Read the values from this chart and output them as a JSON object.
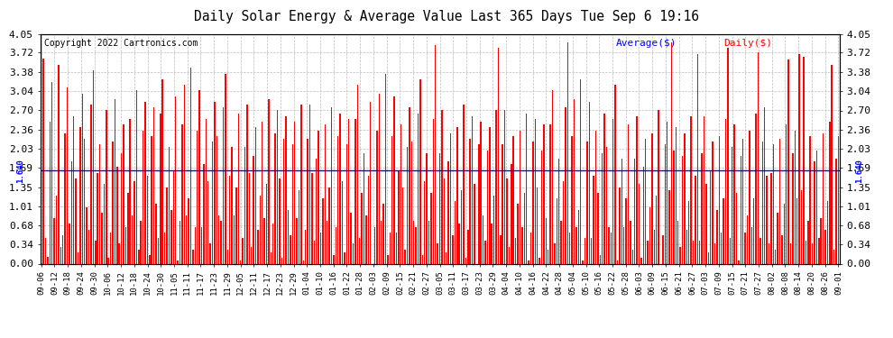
{
  "title": "Daily Solar Energy & Average Value Last 365 Days Tue Sep 6 19:16",
  "copyright": "Copyright 2022 Cartronics.com",
  "average_value": 1.64,
  "average_label": "1.640",
  "ylim": [
    0.0,
    4.05
  ],
  "yticks": [
    0.0,
    0.34,
    0.68,
    1.01,
    1.35,
    1.69,
    2.03,
    2.36,
    2.7,
    3.04,
    3.38,
    3.72,
    4.05
  ],
  "bar_color": "#ff0000",
  "avg_line_color": "#0000ff",
  "background_color": "#ffffff",
  "grid_color": "#bbbbbb",
  "legend_avg_color": "#0000ff",
  "legend_daily_color": "#ff0000",
  "x_tick_labels": [
    "09-06",
    "09-12",
    "09-18",
    "09-24",
    "09-30",
    "10-06",
    "10-12",
    "10-18",
    "10-24",
    "10-30",
    "11-05",
    "11-11",
    "11-17",
    "11-23",
    "11-29",
    "12-05",
    "12-11",
    "12-17",
    "12-23",
    "12-29",
    "01-04",
    "01-10",
    "01-16",
    "01-22",
    "01-28",
    "02-03",
    "02-09",
    "02-15",
    "02-21",
    "02-27",
    "03-05",
    "03-11",
    "03-17",
    "03-23",
    "03-29",
    "04-04",
    "04-10",
    "04-16",
    "04-22",
    "04-28",
    "05-04",
    "05-10",
    "05-16",
    "05-22",
    "05-28",
    "06-03",
    "06-09",
    "06-15",
    "06-21",
    "06-27",
    "07-03",
    "07-09",
    "07-15",
    "07-21",
    "07-27",
    "08-02",
    "08-08",
    "08-14",
    "08-20",
    "08-26",
    "09-01"
  ],
  "daily_values": [
    2.95,
    3.62,
    0.45,
    0.12,
    2.5,
    3.2,
    0.8,
    1.2,
    3.5,
    0.3,
    0.5,
    2.3,
    3.1,
    0.7,
    1.8,
    2.6,
    1.5,
    0.2,
    2.4,
    3.0,
    2.2,
    1.0,
    0.6,
    2.8,
    3.4,
    0.4,
    1.6,
    2.1,
    0.9,
    1.4,
    2.7,
    0.1,
    0.55,
    2.15,
    2.9,
    1.7,
    0.35,
    1.95,
    2.45,
    0.65,
    1.25,
    2.55,
    0.85,
    1.45,
    3.05,
    0.25,
    0.75,
    2.35,
    2.85,
    1.55,
    0.15,
    2.25,
    2.75,
    1.05,
    0.45,
    2.65,
    3.25,
    0.55,
    1.35,
    2.05,
    0.95,
    1.65,
    2.95,
    0.05,
    0.75,
    2.45,
    3.15,
    0.85,
    1.15,
    3.45,
    0.25,
    0.65,
    2.35,
    3.05,
    0.65,
    1.75,
    2.55,
    1.45,
    0.35,
    2.15,
    2.85,
    2.25,
    0.85,
    0.75,
    2.75,
    3.35,
    0.25,
    1.55,
    2.05,
    0.85,
    1.35,
    2.65,
    0.05,
    0.45,
    2.05,
    2.8,
    1.6,
    0.3,
    1.9,
    2.4,
    0.6,
    1.2,
    2.5,
    0.8,
    1.4,
    2.9,
    0.2,
    0.7,
    2.3,
    2.7,
    1.5,
    0.1,
    2.2,
    2.6,
    0.95,
    0.5,
    2.1,
    2.5,
    0.8,
    1.3,
    2.8,
    0.05,
    0.6,
    2.2,
    2.8,
    1.6,
    0.4,
    1.85,
    2.35,
    0.55,
    1.15,
    2.45,
    0.75,
    1.35,
    2.75,
    0.15,
    0.65,
    2.25,
    2.65,
    1.45,
    0.2,
    2.1,
    2.55,
    0.9,
    0.35,
    2.55,
    3.15,
    0.45,
    1.25,
    1.95,
    0.85,
    1.55,
    2.85,
    0.0,
    0.65,
    2.35,
    3.0,
    0.75,
    1.05,
    3.35,
    0.15,
    0.55,
    2.25,
    2.95,
    0.55,
    1.65,
    2.45,
    1.35,
    0.25,
    2.05,
    2.75,
    2.15,
    0.75,
    0.65,
    2.65,
    3.25,
    0.15,
    1.45,
    1.95,
    0.75,
    1.25,
    2.55,
    3.85,
    0.35,
    1.95,
    2.7,
    1.5,
    0.2,
    1.8,
    2.3,
    0.5,
    1.1,
    2.4,
    0.7,
    1.3,
    2.8,
    0.1,
    0.6,
    2.2,
    2.6,
    1.4,
    0.0,
    2.1,
    2.5,
    0.85,
    0.4,
    2.0,
    2.4,
    0.7,
    1.2,
    2.7,
    3.8,
    0.5,
    2.1,
    2.7,
    1.5,
    0.3,
    1.75,
    2.25,
    0.45,
    1.05,
    2.35,
    0.65,
    1.25,
    2.65,
    0.05,
    0.55,
    2.15,
    2.55,
    1.35,
    0.1,
    2.0,
    2.45,
    0.8,
    0.25,
    2.45,
    3.05,
    0.35,
    1.15,
    1.85,
    0.75,
    1.45,
    2.75,
    3.9,
    0.55,
    2.25,
    2.9,
    0.65,
    0.95,
    3.25,
    0.05,
    0.45,
    2.15,
    2.85,
    0.45,
    1.55,
    2.35,
    1.25,
    0.15,
    1.95,
    2.65,
    2.05,
    0.65,
    0.55,
    2.55,
    3.15,
    0.05,
    1.35,
    1.85,
    0.65,
    1.15,
    2.45,
    0.75,
    0.25,
    1.85,
    2.6,
    1.4,
    0.1,
    1.7,
    2.2,
    0.4,
    1.0,
    2.3,
    0.6,
    1.2,
    2.7,
    0.0,
    0.5,
    2.1,
    2.5,
    1.3,
    3.9,
    2.0,
    2.4,
    0.75,
    0.3,
    1.9,
    2.3,
    0.6,
    1.1,
    2.6,
    0.4,
    1.55,
    3.7,
    0.4,
    1.95,
    2.6,
    1.4,
    0.2,
    1.65,
    2.15,
    0.35,
    0.95,
    2.25,
    0.55,
    1.15,
    2.55,
    3.8,
    0.45,
    2.05,
    2.45,
    1.25,
    0.05,
    1.9,
    2.2,
    0.55,
    0.85,
    2.35,
    0.65,
    1.15,
    2.65,
    3.72,
    0.45,
    2.15,
    2.75,
    1.55,
    0.35,
    1.6,
    2.1,
    0.25,
    0.9,
    2.2,
    0.5,
    1.05,
    2.45,
    3.6,
    0.35,
    1.95,
    2.35,
    1.15,
    3.7,
    1.3,
    3.65,
    0.4,
    0.75,
    2.25,
    0.35,
    1.8,
    2.0,
    0.45,
    0.8,
    2.3,
    0.6,
    1.1,
    2.5,
    3.5,
    0.25,
    1.85,
    2.25
  ]
}
